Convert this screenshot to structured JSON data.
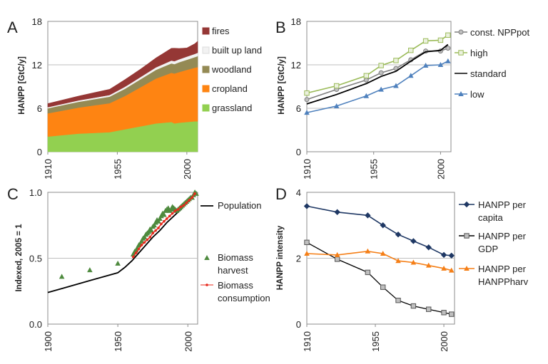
{
  "chart_data": [
    {
      "panel": "A",
      "type": "area",
      "stacked": true,
      "ylabel": "HANPP [GtC/y]",
      "ylim": [
        0,
        18
      ],
      "yticks": [
        0,
        6,
        12,
        18
      ],
      "xlim": [
        1910,
        2007
      ],
      "xticks": [
        1910,
        1955,
        2000
      ],
      "x": [
        1910,
        1920,
        1930,
        1940,
        1950,
        1955,
        1960,
        1965,
        1970,
        1975,
        1980,
        1985,
        1990,
        1992,
        1995,
        2000,
        2005,
        2007
      ],
      "series": [
        {
          "name": "grassland",
          "color": "#92d050",
          "values": [
            2.1,
            2.3,
            2.5,
            2.6,
            2.7,
            2.9,
            3.1,
            3.3,
            3.5,
            3.7,
            3.9,
            4.0,
            4.1,
            3.9,
            4.0,
            4.1,
            4.2,
            4.2
          ]
        },
        {
          "name": "cropland",
          "color": "#fe8412",
          "values": [
            3.2,
            3.4,
            3.6,
            3.8,
            4.0,
            4.3,
            4.6,
            5.0,
            5.4,
            5.8,
            6.2,
            6.5,
            6.8,
            6.9,
            7.0,
            7.2,
            7.4,
            7.5
          ]
        },
        {
          "name": "woodland",
          "color": "#948a54",
          "values": [
            0.7,
            0.75,
            0.8,
            0.85,
            0.9,
            0.95,
            1.0,
            1.05,
            1.1,
            1.15,
            1.2,
            1.25,
            1.3,
            1.3,
            1.35,
            1.4,
            1.45,
            1.5
          ]
        },
        {
          "name": "built up land",
          "color": "#f2f2f2",
          "values": [
            0.15,
            0.17,
            0.19,
            0.21,
            0.23,
            0.25,
            0.27,
            0.29,
            0.31,
            0.33,
            0.35,
            0.37,
            0.39,
            0.4,
            0.41,
            0.43,
            0.45,
            0.46
          ]
        },
        {
          "name": "fires",
          "color": "#953735",
          "values": [
            0.5,
            0.55,
            0.6,
            0.7,
            0.8,
            0.9,
            1.0,
            1.05,
            1.1,
            1.2,
            1.3,
            1.5,
            1.7,
            1.8,
            1.5,
            1.2,
            1.4,
            1.6
          ]
        }
      ],
      "legend": [
        "fires",
        "built up land",
        "woodland",
        "cropland",
        "grassland"
      ]
    },
    {
      "panel": "B",
      "type": "line",
      "ylabel": "HANPP [GtC/y]",
      "ylim": [
        0,
        18
      ],
      "yticks": [
        0,
        6,
        12,
        18
      ],
      "xlim": [
        1910,
        2007
      ],
      "xticks": [
        1910,
        1955,
        2000
      ],
      "series": [
        {
          "name": "const. NPPpot",
          "color": "#7f7f7f",
          "marker": "circle",
          "x": [
            1910,
            1930,
            1950,
            1960,
            1970,
            1980,
            1990,
            2000,
            2005
          ],
          "values": [
            7.2,
            8.6,
            9.9,
            10.9,
            11.5,
            12.7,
            13.9,
            13.9,
            14.3
          ]
        },
        {
          "name": "high",
          "color": "#9bbb59",
          "marker": "square",
          "x": [
            1910,
            1930,
            1950,
            1960,
            1970,
            1980,
            1990,
            2000,
            2005
          ],
          "values": [
            8.1,
            9.1,
            10.5,
            11.9,
            12.6,
            14.0,
            15.3,
            15.4,
            16.1
          ]
        },
        {
          "name": "standard",
          "color": "#000000",
          "marker": "none",
          "x": [
            1910,
            1930,
            1950,
            1960,
            1970,
            1980,
            1990,
            2000,
            2005
          ],
          "values": [
            6.6,
            7.9,
            9.4,
            10.4,
            11.1,
            12.5,
            13.8,
            14.0,
            14.8
          ]
        },
        {
          "name": "low",
          "color": "#4f81bd",
          "marker": "triangle",
          "x": [
            1910,
            1930,
            1950,
            1960,
            1970,
            1980,
            1990,
            2000,
            2005
          ],
          "values": [
            5.4,
            6.3,
            7.7,
            8.6,
            9.1,
            10.5,
            11.9,
            12.0,
            12.5
          ]
        }
      ],
      "legend": [
        "const. NPPpot",
        "high",
        "standard",
        "low"
      ]
    },
    {
      "panel": "C",
      "type": "line",
      "ylabel": "Indexed, 2005 = 1",
      "ylim": [
        0,
        1
      ],
      "yticks": [
        "0.0",
        "0.5",
        "1.0"
      ],
      "xlim": [
        1900,
        2007
      ],
      "xticks": [
        1900,
        1950,
        2000
      ],
      "series": [
        {
          "name": "Population",
          "color": "#000000",
          "marker": "none",
          "x": [
            1900,
            1910,
            1920,
            1930,
            1940,
            1950,
            1955,
            1960,
            1965,
            1970,
            1975,
            1980,
            1985,
            1990,
            1995,
            2000,
            2005
          ],
          "values": [
            0.24,
            0.27,
            0.3,
            0.33,
            0.36,
            0.39,
            0.43,
            0.48,
            0.54,
            0.6,
            0.66,
            0.71,
            0.77,
            0.82,
            0.87,
            0.93,
            1.0
          ]
        },
        {
          "name": "Biomass harvest",
          "color": "#4e8a3e",
          "marker": "triangle",
          "x": [
            1910,
            1930,
            1950,
            1961,
            1962,
            1963,
            1964,
            1965,
            1966,
            1967,
            1968,
            1969,
            1970,
            1971,
            1972,
            1973,
            1974,
            1975,
            1976,
            1977,
            1978,
            1979,
            1980,
            1981,
            1982,
            1983,
            1984,
            1985,
            1986,
            1987,
            1988,
            1989,
            1990,
            1991,
            1992,
            1993,
            1994,
            1995,
            1996,
            1997,
            1998,
            1999,
            2000,
            2001,
            2002,
            2003,
            2004,
            2005,
            2006
          ],
          "values": [
            0.36,
            0.41,
            0.46,
            0.53,
            0.55,
            0.56,
            0.58,
            0.6,
            0.61,
            0.63,
            0.65,
            0.66,
            0.68,
            0.69,
            0.7,
            0.72,
            0.71,
            0.74,
            0.75,
            0.77,
            0.79,
            0.78,
            0.8,
            0.82,
            0.84,
            0.83,
            0.86,
            0.87,
            0.88,
            0.86,
            0.87,
            0.89,
            0.88,
            0.87,
            0.86,
            0.87,
            0.88,
            0.89,
            0.9,
            0.91,
            0.92,
            0.93,
            0.94,
            0.95,
            0.96,
            0.96,
            0.98,
            1.0,
            0.99
          ]
        },
        {
          "name": "Biomass consumption",
          "color": "#e8291c",
          "marker": "dot",
          "x": [
            1961,
            1963,
            1965,
            1967,
            1969,
            1971,
            1973,
            1975,
            1977,
            1979,
            1981,
            1983,
            1985,
            1987,
            1989,
            1991,
            1993,
            1995,
            1997,
            1999,
            2001,
            2003,
            2005
          ],
          "values": [
            0.51,
            0.54,
            0.57,
            0.6,
            0.62,
            0.64,
            0.66,
            0.69,
            0.71,
            0.73,
            0.76,
            0.78,
            0.8,
            0.82,
            0.84,
            0.86,
            0.87,
            0.89,
            0.9,
            0.92,
            0.94,
            0.96,
            0.99
          ]
        }
      ],
      "legend": [
        "Population",
        "Biomass harvest",
        "Biomass consumption"
      ]
    },
    {
      "panel": "D",
      "type": "line",
      "ylabel": "HANPP intensity",
      "ylim": [
        0,
        4
      ],
      "yticks": [
        0,
        2,
        4
      ],
      "xlim": [
        1910,
        2007
      ],
      "xticks": [
        1910,
        1955,
        2000
      ],
      "series": [
        {
          "name": "HANPP per capita",
          "color": "#1f3864",
          "marker": "diamond",
          "x": [
            1910,
            1930,
            1950,
            1960,
            1970,
            1980,
            1990,
            2000,
            2005
          ],
          "values": [
            3.58,
            3.4,
            3.3,
            3.0,
            2.72,
            2.52,
            2.33,
            2.1,
            2.08
          ]
        },
        {
          "name": "HANPP per GDP",
          "color": "#000000",
          "marker": "square",
          "x": [
            1910,
            1930,
            1950,
            1960,
            1970,
            1980,
            1990,
            2000,
            2005
          ],
          "values": [
            2.48,
            1.97,
            1.57,
            1.12,
            0.72,
            0.55,
            0.45,
            0.35,
            0.3
          ]
        },
        {
          "name": "HANPP per HANPPharv",
          "color": "#f57f17",
          "marker": "triangle",
          "x": [
            1910,
            1930,
            1950,
            1960,
            1970,
            1980,
            1990,
            2000,
            2005
          ],
          "values": [
            2.14,
            2.1,
            2.21,
            2.14,
            1.92,
            1.87,
            1.78,
            1.69,
            1.63
          ]
        }
      ],
      "legend": [
        "HANPP per capita",
        "HANPP per GDP",
        "HANPP per HANPPharv"
      ]
    }
  ],
  "legend_text": {
    "A": [
      "fires",
      "built up land",
      "woodland",
      "cropland",
      "grassland"
    ],
    "B": [
      "const. NPPpot",
      "high",
      "standard",
      "low"
    ],
    "C": [
      [
        "Population"
      ],
      [
        "Biomass",
        "harvest"
      ],
      [
        "Biomass",
        "consumption"
      ]
    ],
    "D": [
      [
        "HANPP per",
        "capita"
      ],
      [
        "HANPP per",
        "GDP"
      ],
      [
        "HANPP per",
        "HANPPharv"
      ]
    ]
  }
}
